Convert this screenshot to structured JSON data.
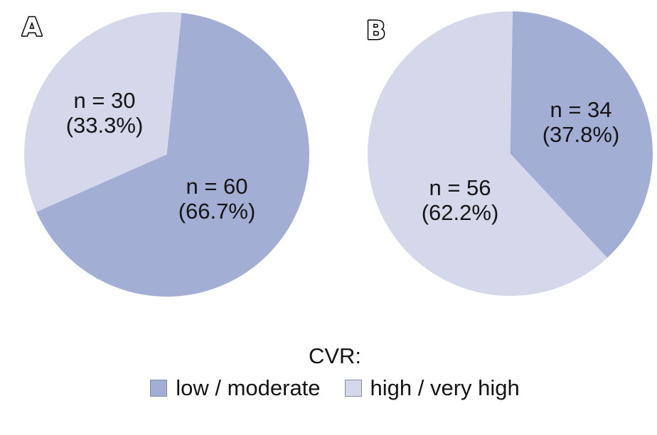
{
  "figure": {
    "background": "#ffffff",
    "panels": [
      {
        "letter": "A"
      },
      {
        "letter": "B"
      }
    ],
    "legend": {
      "title": "CVR:",
      "items": [
        {
          "label": "low / moderate",
          "color": "#a3aed4"
        },
        {
          "label": "high / very high",
          "color": "#d5d8ea"
        }
      ]
    }
  },
  "chart_data": [
    {
      "type": "pie",
      "panel": "A",
      "title": "A",
      "total_n": 90,
      "start_angle_deg": 6,
      "legend_position": "bottom",
      "slices": [
        {
          "category": "low / moderate",
          "n": 60,
          "percent": 66.7,
          "line1": "n = 60",
          "line2": "(66.7%)",
          "color": "#a3aed4"
        },
        {
          "category": "high / very high",
          "n": 30,
          "percent": 33.3,
          "line1": "n = 30",
          "line2": "(33.3%)",
          "color": "#d5d8ea"
        }
      ]
    },
    {
      "type": "pie",
      "panel": "B",
      "title": "B",
      "total_n": 90,
      "start_angle_deg": 1,
      "legend_position": "bottom",
      "slices": [
        {
          "category": "low / moderate",
          "n": 34,
          "percent": 37.8,
          "line1": "n = 34",
          "line2": "(37.8%)",
          "color": "#a3aed4"
        },
        {
          "category": "high / very high",
          "n": 56,
          "percent": 62.2,
          "line1": "n = 56",
          "line2": "(62.2%)",
          "color": "#d5d8ea"
        }
      ]
    }
  ]
}
